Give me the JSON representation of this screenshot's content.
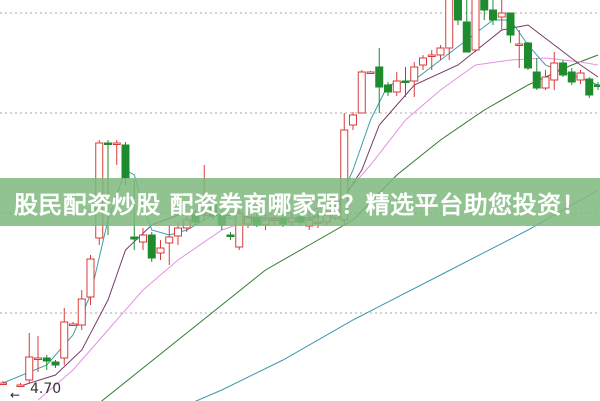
{
  "banner": {
    "text": "股民配资炒股 配资券商哪家强？精选平台助您投资！"
  },
  "chart_data": {
    "type": "candlestick",
    "price_label": "4.70",
    "ylim": [
      4.59,
      8.6
    ],
    "gridlines": [
      8.47,
      7.47,
      6.47,
      5.47
    ],
    "grid": "dotted horizontal",
    "colors": {
      "up": "#d83a3a",
      "down": "#1e8c2e",
      "ma5": "#3aa0a8",
      "ma10": "#7a3a6a",
      "ma20": "#e592e5",
      "ma30": "#2f7a2f",
      "ma60": "#3a9aa8",
      "grid": "#aaaaaa"
    },
    "candles": [
      [
        0,
        4.77,
        4.77,
        4.79,
        4.75
      ],
      [
        2,
        4.75,
        4.75,
        4.77,
        4.73
      ],
      [
        3,
        4.8,
        5.03,
        5.27,
        4.77
      ],
      [
        4,
        5.02,
        5.02,
        5.24,
        4.88
      ],
      [
        5,
        5.02,
        4.99,
        5.05,
        4.9
      ],
      [
        6,
        4.98,
        4.95,
        5.0,
        4.92
      ],
      [
        7,
        5.02,
        5.38,
        5.52,
        4.95
      ],
      [
        8,
        5.36,
        5.36,
        5.38,
        5.34
      ],
      [
        9,
        5.35,
        5.61,
        5.7,
        5.3
      ],
      [
        10,
        5.63,
        6.01,
        6.05,
        5.55
      ],
      [
        11,
        6.22,
        7.17,
        7.2,
        6.15
      ],
      [
        12,
        7.17,
        7.16,
        7.2,
        6.25
      ],
      [
        13,
        7.16,
        7.17,
        7.2,
        6.95
      ],
      [
        14,
        7.15,
        6.82,
        7.18,
        6.75
      ],
      [
        15,
        6.23,
        6.21,
        6.8,
        6.1
      ],
      [
        16,
        6.18,
        6.25,
        6.32,
        6.1
      ],
      [
        17,
        6.25,
        6.02,
        6.28,
        5.98
      ],
      [
        18,
        6.07,
        6.12,
        6.2,
        6.0
      ],
      [
        19,
        6.17,
        6.23,
        6.35,
        5.95
      ],
      [
        20,
        6.24,
        6.32,
        6.38,
        6.15
      ],
      [
        21,
        6.32,
        6.4,
        6.45,
        6.28
      ],
      [
        22,
        6.47,
        6.38,
        6.5,
        6.35
      ],
      [
        23,
        6.48,
        6.49,
        6.95,
        6.4
      ],
      [
        24,
        6.55,
        6.44,
        6.58,
        6.4
      ],
      [
        25,
        6.45,
        6.35,
        6.5,
        6.3
      ],
      [
        26,
        6.25,
        6.24,
        6.28,
        6.2
      ],
      [
        27,
        6.13,
        6.47,
        6.55,
        6.1
      ],
      [
        28,
        6.36,
        6.42,
        6.48,
        6.32
      ],
      [
        29,
        6.42,
        6.35,
        6.46,
        6.33
      ],
      [
        30,
        6.35,
        6.4,
        6.45,
        6.3
      ],
      [
        31,
        6.4,
        6.41,
        6.48,
        6.35
      ],
      [
        32,
        6.42,
        6.36,
        6.46,
        6.33
      ],
      [
        33,
        6.38,
        6.42,
        6.46,
        6.34
      ],
      [
        34,
        6.43,
        6.38,
        6.47,
        6.35
      ],
      [
        35,
        6.34,
        6.4,
        6.5,
        6.3
      ],
      [
        36,
        6.38,
        6.38,
        6.48,
        6.32
      ],
      [
        37,
        6.38,
        6.45,
        6.5,
        6.35
      ],
      [
        38,
        6.42,
        6.52,
        6.57,
        6.4
      ],
      [
        39,
        6.4,
        7.3,
        7.47,
        6.35
      ],
      [
        40,
        7.35,
        7.45,
        7.48,
        7.3
      ],
      [
        41,
        7.47,
        7.88,
        7.9,
        7.47
      ],
      [
        42,
        7.88,
        7.88,
        7.89,
        7.87
      ],
      [
        43,
        7.93,
        7.73,
        8.12,
        7.47
      ],
      [
        44,
        7.75,
        7.68,
        7.78,
        7.64
      ],
      [
        45,
        7.68,
        7.79,
        7.88,
        7.64
      ],
      [
        46,
        7.79,
        7.78,
        7.93,
        7.63
      ],
      [
        47,
        7.79,
        7.93,
        7.98,
        7.63
      ],
      [
        48,
        7.95,
        8.02,
        8.05,
        7.9
      ],
      [
        49,
        8.04,
        8.05,
        8.1,
        7.9
      ],
      [
        50,
        8.05,
        8.12,
        8.15,
        8.0
      ],
      [
        51,
        8.12,
        8.62,
        8.7,
        8.0
      ],
      [
        52,
        8.65,
        8.4,
        8.7,
        8.35
      ],
      [
        53,
        8.38,
        8.08,
        8.65,
        8.08
      ],
      [
        54,
        8.1,
        8.65,
        8.7,
        8.08
      ],
      [
        55,
        8.65,
        8.5,
        8.7,
        8.4
      ],
      [
        56,
        8.5,
        8.4,
        8.6,
        8.35
      ],
      [
        57,
        8.43,
        8.47,
        8.65,
        8.3
      ],
      [
        58,
        8.47,
        8.25,
        8.47,
        8.17
      ],
      [
        59,
        8.16,
        8.16,
        8.3,
        7.92
      ],
      [
        60,
        8.17,
        7.92,
        8.18,
        7.9
      ],
      [
        61,
        7.88,
        7.72,
        8.02,
        7.7
      ],
      [
        62,
        7.72,
        7.83,
        7.9,
        7.7
      ],
      [
        63,
        7.8,
        7.97,
        8.08,
        7.7
      ],
      [
        64,
        7.97,
        7.85,
        8.0,
        7.83
      ],
      [
        65,
        7.88,
        7.78,
        7.92,
        7.75
      ],
      [
        66,
        7.8,
        7.87,
        7.9,
        7.76
      ],
      [
        67,
        7.81,
        7.65,
        7.83,
        7.62
      ],
      [
        68,
        7.75,
        7.74,
        7.78,
        7.7
      ]
    ],
    "moving_averages": {
      "ma5": [
        [
          0,
          4.77
        ],
        [
          5,
          4.95
        ],
        [
          8,
          5.25
        ],
        [
          10,
          5.65
        ],
        [
          12,
          6.4
        ],
        [
          14,
          6.9
        ],
        [
          15,
          6.85
        ],
        [
          16,
          6.55
        ],
        [
          17,
          6.3
        ],
        [
          19,
          6.25
        ],
        [
          21,
          6.3
        ],
        [
          24,
          6.45
        ],
        [
          27,
          6.4
        ],
        [
          30,
          6.4
        ],
        [
          35,
          6.4
        ],
        [
          38,
          6.5
        ],
        [
          40,
          6.9
        ],
        [
          42,
          7.4
        ],
        [
          44,
          7.75
        ],
        [
          47,
          7.8
        ],
        [
          50,
          8.0
        ],
        [
          53,
          8.2
        ],
        [
          56,
          8.4
        ],
        [
          58,
          8.4
        ],
        [
          60,
          8.15
        ],
        [
          62,
          7.95
        ],
        [
          64,
          7.88
        ],
        [
          66,
          7.82
        ],
        [
          68,
          7.75
        ]
      ],
      "ma10": [
        [
          2,
          4.74
        ],
        [
          6,
          4.85
        ],
        [
          9,
          5.1
        ],
        [
          12,
          5.6
        ],
        [
          14,
          6.1
        ],
        [
          17,
          6.35
        ],
        [
          20,
          6.45
        ],
        [
          25,
          6.45
        ],
        [
          30,
          6.42
        ],
        [
          35,
          6.42
        ],
        [
          38,
          6.5
        ],
        [
          41,
          6.9
        ],
        [
          43,
          7.35
        ],
        [
          47,
          7.75
        ],
        [
          52,
          7.95
        ],
        [
          57,
          8.3
        ],
        [
          60,
          8.35
        ],
        [
          63,
          8.15
        ],
        [
          66,
          7.95
        ],
        [
          68,
          7.83
        ]
      ],
      "ma20": [
        [
          4,
          4.6
        ],
        [
          8,
          4.9
        ],
        [
          12,
          5.3
        ],
        [
          16,
          5.7
        ],
        [
          20,
          6.0
        ],
        [
          25,
          6.3
        ],
        [
          30,
          6.45
        ],
        [
          35,
          6.5
        ],
        [
          38,
          6.55
        ],
        [
          42,
          6.95
        ],
        [
          46,
          7.4
        ],
        [
          50,
          7.7
        ],
        [
          54,
          7.95
        ],
        [
          58,
          8.0
        ],
        [
          62,
          8.02
        ],
        [
          66,
          7.98
        ],
        [
          68,
          7.95
        ]
      ],
      "ma30": [
        [
          10,
          4.5
        ],
        [
          15,
          4.85
        ],
        [
          20,
          5.2
        ],
        [
          25,
          5.55
        ],
        [
          30,
          5.9
        ],
        [
          35,
          6.15
        ],
        [
          40,
          6.4
        ],
        [
          45,
          6.85
        ],
        [
          50,
          7.2
        ],
        [
          55,
          7.5
        ],
        [
          60,
          7.75
        ],
        [
          65,
          7.95
        ],
        [
          68,
          8.05
        ]
      ],
      "ma60": [
        [
          17,
          4.4
        ],
        [
          25,
          4.7
        ],
        [
          32,
          5.0
        ],
        [
          40,
          5.4
        ],
        [
          50,
          5.85
        ],
        [
          60,
          6.3
        ],
        [
          65,
          6.55
        ],
        [
          68,
          6.7
        ]
      ]
    }
  }
}
